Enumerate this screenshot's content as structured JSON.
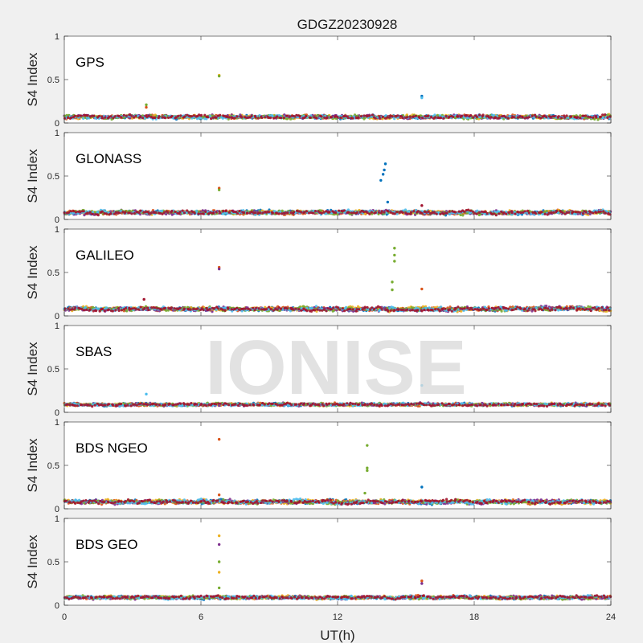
{
  "chart_data": {
    "type": "scatter",
    "title": "GDGZ20230928",
    "xlabel": "UT(h)",
    "ylabel": "S4 Index",
    "xlim": [
      0,
      24
    ],
    "ylim": [
      0,
      1
    ],
    "x_ticks": [
      "0",
      "6",
      "12",
      "18",
      "24"
    ],
    "y_ticks": [
      "0",
      "0.5",
      "1"
    ],
    "watermark": "IONISE",
    "series_colors": [
      "#0072BD",
      "#D95319",
      "#EDB120",
      "#7E2F8E",
      "#77AC30",
      "#4DBEEE",
      "#A2142F"
    ],
    "panels": [
      {
        "label": "GPS",
        "baseline": 0.07,
        "spread": 0.03,
        "outliers": [
          {
            "x": 6.8,
            "y": 0.55,
            "color": "#EDB120"
          },
          {
            "x": 6.8,
            "y": 0.54,
            "color": "#77AC30"
          },
          {
            "x": 3.6,
            "y": 0.21,
            "color": "#77AC30"
          },
          {
            "x": 3.6,
            "y": 0.18,
            "color": "#D95319"
          },
          {
            "x": 15.7,
            "y": 0.31,
            "color": "#0072BD"
          },
          {
            "x": 15.7,
            "y": 0.29,
            "color": "#4DBEEE"
          }
        ]
      },
      {
        "label": "GLONASS",
        "baseline": 0.08,
        "spread": 0.035,
        "outliers": [
          {
            "x": 6.8,
            "y": 0.36,
            "color": "#D95319"
          },
          {
            "x": 6.8,
            "y": 0.34,
            "color": "#77AC30"
          },
          {
            "x": 14.1,
            "y": 0.64,
            "color": "#0072BD"
          },
          {
            "x": 14.05,
            "y": 0.57,
            "color": "#0072BD"
          },
          {
            "x": 14.0,
            "y": 0.52,
            "color": "#0072BD"
          },
          {
            "x": 13.9,
            "y": 0.45,
            "color": "#0072BD"
          },
          {
            "x": 14.2,
            "y": 0.2,
            "color": "#0072BD"
          },
          {
            "x": 15.7,
            "y": 0.16,
            "color": "#A2142F"
          }
        ]
      },
      {
        "label": "GALILEO",
        "baseline": 0.08,
        "spread": 0.035,
        "outliers": [
          {
            "x": 6.8,
            "y": 0.56,
            "color": "#D95319"
          },
          {
            "x": 6.8,
            "y": 0.54,
            "color": "#7E2F8E"
          },
          {
            "x": 3.5,
            "y": 0.19,
            "color": "#A2142F"
          },
          {
            "x": 14.5,
            "y": 0.78,
            "color": "#77AC30"
          },
          {
            "x": 14.5,
            "y": 0.7,
            "color": "#77AC30"
          },
          {
            "x": 14.5,
            "y": 0.63,
            "color": "#77AC30"
          },
          {
            "x": 14.4,
            "y": 0.39,
            "color": "#77AC30"
          },
          {
            "x": 14.4,
            "y": 0.3,
            "color": "#77AC30"
          },
          {
            "x": 15.7,
            "y": 0.31,
            "color": "#D95319"
          }
        ]
      },
      {
        "label": "SBAS",
        "baseline": 0.09,
        "spread": 0.02,
        "outliers": [
          {
            "x": 3.6,
            "y": 0.21,
            "color": "#4DBEEE"
          },
          {
            "x": 15.7,
            "y": 0.31,
            "color": "#4DBEEE"
          }
        ]
      },
      {
        "label": "BDS NGEO",
        "baseline": 0.08,
        "spread": 0.035,
        "outliers": [
          {
            "x": 6.8,
            "y": 0.8,
            "color": "#D95319"
          },
          {
            "x": 6.8,
            "y": 0.16,
            "color": "#D95319"
          },
          {
            "x": 13.3,
            "y": 0.73,
            "color": "#77AC30"
          },
          {
            "x": 13.3,
            "y": 0.47,
            "color": "#77AC30"
          },
          {
            "x": 13.3,
            "y": 0.44,
            "color": "#77AC30"
          },
          {
            "x": 13.2,
            "y": 0.18,
            "color": "#77AC30"
          },
          {
            "x": 15.7,
            "y": 0.25,
            "color": "#0072BD"
          }
        ]
      },
      {
        "label": "BDS GEO",
        "baseline": 0.09,
        "spread": 0.025,
        "outliers": [
          {
            "x": 6.8,
            "y": 0.8,
            "color": "#EDB120"
          },
          {
            "x": 6.8,
            "y": 0.7,
            "color": "#7E2F8E"
          },
          {
            "x": 6.8,
            "y": 0.5,
            "color": "#77AC30"
          },
          {
            "x": 6.8,
            "y": 0.38,
            "color": "#EDB120"
          },
          {
            "x": 6.8,
            "y": 0.2,
            "color": "#77AC30"
          },
          {
            "x": 15.7,
            "y": 0.28,
            "color": "#D95319"
          },
          {
            "x": 15.7,
            "y": 0.25,
            "color": "#7E2F8E"
          }
        ]
      }
    ]
  }
}
